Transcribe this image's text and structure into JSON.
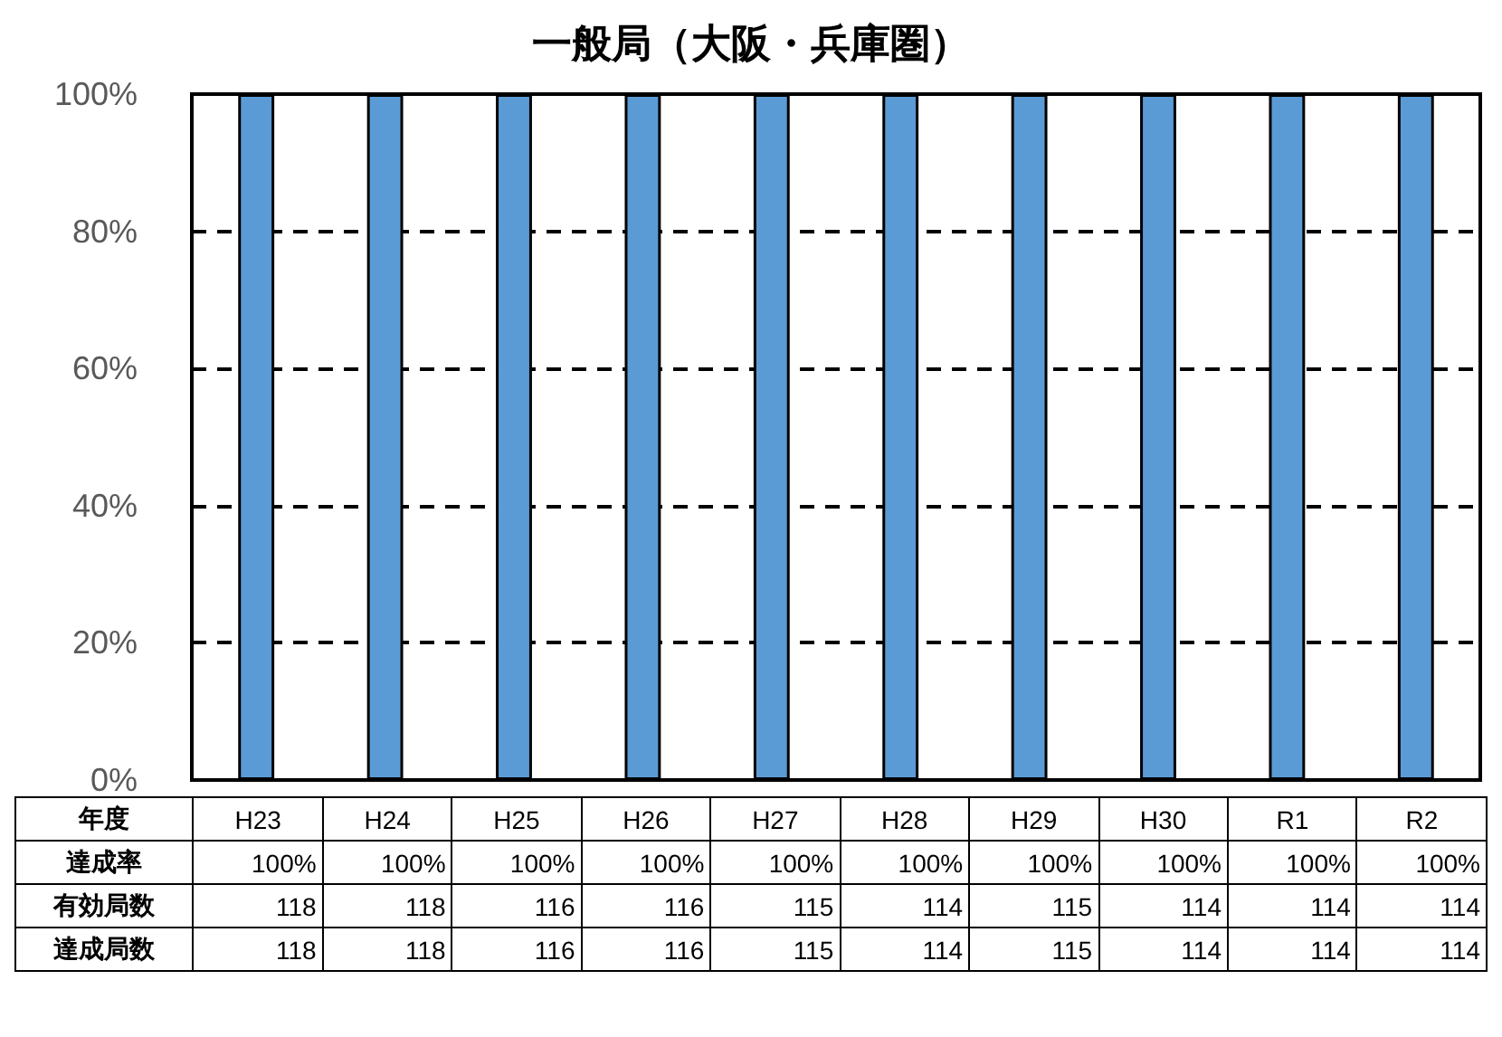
{
  "chart_data": {
    "type": "bar",
    "title": "一般局（大阪・兵庫圏）",
    "xlabel": "年度",
    "ylabel": "達成率",
    "categories": [
      "H23",
      "H24",
      "H25",
      "H26",
      "H27",
      "H28",
      "H29",
      "H30",
      "R1",
      "R2"
    ],
    "values": [
      100,
      100,
      100,
      100,
      100,
      100,
      100,
      100,
      100,
      100
    ],
    "value_labels": [
      "100%",
      "100%",
      "100%",
      "100%",
      "100%",
      "100%",
      "100%",
      "100%",
      "100%",
      "100%"
    ],
    "color": "#5b9bd5",
    "ylim": [
      0,
      100
    ],
    "yticks": [
      {
        "value": 0,
        "label": "0%"
      },
      {
        "value": 20,
        "label": "20%"
      },
      {
        "value": 40,
        "label": "40%"
      },
      {
        "value": 60,
        "label": "60%"
      },
      {
        "value": 80,
        "label": "80%"
      },
      {
        "value": 100,
        "label": "100%"
      }
    ],
    "grid": "y",
    "annotations": [
      "有効局数",
      "118",
      "118",
      "116",
      "116",
      "115",
      "114",
      "115",
      "114",
      "114",
      "114",
      "達成局数",
      "118",
      "118",
      "116",
      "116",
      "115",
      "114",
      "115",
      "114",
      "114",
      "114"
    ]
  }
}
